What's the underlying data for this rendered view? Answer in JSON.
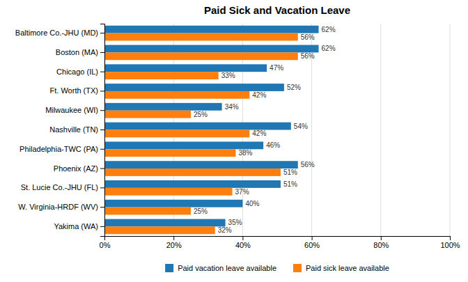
{
  "chart_data": {
    "type": "bar",
    "orientation": "horizontal",
    "title": "Paid Sick and Vacation Leave",
    "categories": [
      "Baltimore Co.-JHU (MD)",
      "Boston (MA)",
      "Chicago (IL)",
      "Ft. Worth (TX)",
      "Milwaukee (WI)",
      "Nashville (TN)",
      "Philadelphia-TWC (PA)",
      "Phoenix (AZ)",
      "St. Lucie Co.-JHU (FL)",
      "W. Virginia-HRDF (WV)",
      "Yakima (WA)"
    ],
    "series": [
      {
        "name": "Paid vacation leave available",
        "values": [
          62,
          62,
          47,
          52,
          34,
          54,
          46,
          56,
          51,
          40,
          35
        ],
        "value_labels": [
          "62%",
          "62%",
          "47%",
          "52%",
          "34%",
          "54%",
          "46%",
          "56%",
          "51%",
          "40%",
          "35%"
        ]
      },
      {
        "name": "Paid sick leave available",
        "values": [
          56,
          56,
          33,
          42,
          25,
          42,
          38,
          51,
          37,
          25,
          32
        ],
        "value_labels": [
          "56%",
          "56%",
          "33%",
          "42%",
          "25%",
          "42%",
          "38%",
          "51%",
          "37%",
          "25%",
          "32%"
        ]
      }
    ],
    "xlim": [
      0,
      100
    ],
    "xticks": [
      {
        "value": 0,
        "label": "0%"
      },
      {
        "value": 20,
        "label": "20%"
      },
      {
        "value": 40,
        "label": "40%"
      },
      {
        "value": 60,
        "label": "60%"
      },
      {
        "value": 80,
        "label": "80%"
      },
      {
        "value": 100,
        "label": "100%"
      }
    ],
    "grid": true,
    "data_labels": true,
    "legend": "bottom"
  }
}
